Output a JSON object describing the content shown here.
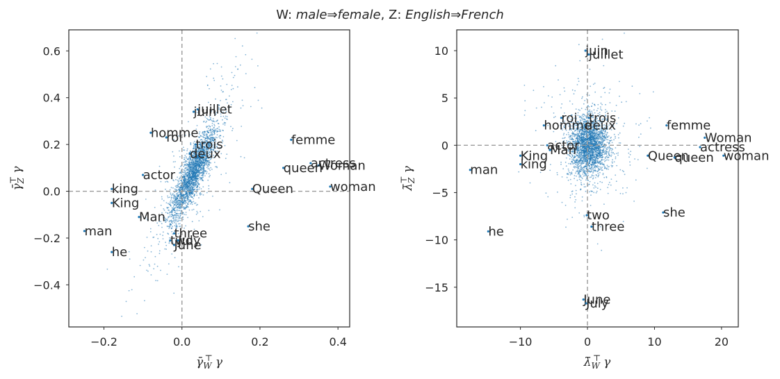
{
  "title": {
    "prefix_w": "W: ",
    "w_from": "male",
    "arrow": "⇒",
    "w_to": "female",
    "sep": ", Z: ",
    "z_from": "English",
    "z_to": "French"
  },
  "chart_data": [
    {
      "type": "scatter",
      "xlabel": "γ̄_W^⊤ γ",
      "ylabel": "γ̄_Z^⊤ γ",
      "xlim": [
        -0.29,
        0.43
      ],
      "ylim": [
        -0.58,
        0.69
      ],
      "xticks": [
        -0.2,
        0.0,
        0.2,
        0.4
      ],
      "xtick_labels": [
        "−0.2",
        "0.0",
        "0.2",
        "0.4"
      ],
      "yticks": [
        -0.4,
        -0.2,
        0.0,
        0.2,
        0.4,
        0.6
      ],
      "ytick_labels": [
        "−0.4",
        "−0.2",
        "0.0",
        "0.2",
        "0.4",
        "0.6"
      ],
      "reference_lines": {
        "x": 0.0,
        "y": 0.0
      },
      "point_color": "#1f77b4",
      "cloud": {
        "center": [
          0.03,
          0.08
        ],
        "spread": [
          0.03,
          0.1
        ],
        "correlation": 0.85,
        "count": 2600
      },
      "labels": [
        {
          "text": "juin",
          "x": 0.03,
          "y": 0.34
        },
        {
          "text": "juillet",
          "x": 0.04,
          "y": 0.35
        },
        {
          "text": "homme",
          "x": -0.08,
          "y": 0.25
        },
        {
          "text": "roi",
          "x": -0.04,
          "y": 0.23
        },
        {
          "text": "trois",
          "x": 0.035,
          "y": 0.2
        },
        {
          "text": "deux",
          "x": 0.02,
          "y": 0.16
        },
        {
          "text": "femme",
          "x": 0.28,
          "y": 0.22
        },
        {
          "text": "actress",
          "x": 0.33,
          "y": 0.12
        },
        {
          "text": "Woman",
          "x": 0.35,
          "y": 0.11
        },
        {
          "text": "queen",
          "x": 0.26,
          "y": 0.1
        },
        {
          "text": "actor",
          "x": -0.1,
          "y": 0.07
        },
        {
          "text": "king",
          "x": -0.18,
          "y": 0.01
        },
        {
          "text": "Queen",
          "x": 0.18,
          "y": 0.01
        },
        {
          "text": "woman",
          "x": 0.38,
          "y": 0.02
        },
        {
          "text": "King",
          "x": -0.18,
          "y": -0.05
        },
        {
          "text": "Man",
          "x": -0.11,
          "y": -0.11
        },
        {
          "text": "man",
          "x": -0.25,
          "y": -0.17
        },
        {
          "text": "she",
          "x": 0.17,
          "y": -0.15
        },
        {
          "text": "three",
          "x": -0.02,
          "y": -0.18
        },
        {
          "text": "two",
          "x": -0.03,
          "y": -0.21
        },
        {
          "text": "July",
          "x": -0.01,
          "y": -0.21
        },
        {
          "text": "June",
          "x": -0.02,
          "y": -0.23
        },
        {
          "text": "he",
          "x": -0.18,
          "y": -0.26
        }
      ]
    },
    {
      "type": "scatter",
      "xlabel": "λ̄_W^⊤ γ",
      "ylabel": "λ̄_Z^⊤ γ",
      "xlim": [
        -19.5,
        22.5
      ],
      "ylim": [
        -19.2,
        12.2
      ],
      "xticks": [
        -10,
        0,
        10,
        20
      ],
      "xtick_labels": [
        "−10",
        "0",
        "10",
        "20"
      ],
      "yticks": [
        -15,
        -10,
        -5,
        0,
        5,
        10
      ],
      "ytick_labels": [
        "−15",
        "−10",
        "−5",
        "0",
        "5",
        "10"
      ],
      "reference_lines": {
        "x": 0.0,
        "y": 0.0
      },
      "point_color": "#1f77b4",
      "cloud": {
        "center": [
          0.2,
          0.0
        ],
        "spread": [
          1.4,
          1.6
        ],
        "correlation": 0.0,
        "count": 2600
      },
      "labels": [
        {
          "text": "juin",
          "x": -0.3,
          "y": 10.0
        },
        {
          "text": "juillet",
          "x": 0.2,
          "y": 9.6
        },
        {
          "text": "roi",
          "x": -3.9,
          "y": 2.9
        },
        {
          "text": "trois",
          "x": 0.2,
          "y": 2.9
        },
        {
          "text": "homme",
          "x": -6.5,
          "y": 2.1
        },
        {
          "text": "deux",
          "x": -0.4,
          "y": 2.1
        },
        {
          "text": "femme",
          "x": 11.8,
          "y": 2.1
        },
        {
          "text": "Woman",
          "x": 17.5,
          "y": 0.8
        },
        {
          "text": "actor",
          "x": -6.0,
          "y": 0.0
        },
        {
          "text": "actress",
          "x": 16.8,
          "y": -0.2
        },
        {
          "text": "Man",
          "x": -5.6,
          "y": -0.5
        },
        {
          "text": "King",
          "x": -10.0,
          "y": -1.1
        },
        {
          "text": "Queen",
          "x": 9.0,
          "y": -1.1
        },
        {
          "text": "queen",
          "x": 13.0,
          "y": -1.3
        },
        {
          "text": "woman",
          "x": 20.3,
          "y": -1.1
        },
        {
          "text": "king",
          "x": -10.0,
          "y": -2.0
        },
        {
          "text": "man",
          "x": -17.5,
          "y": -2.6
        },
        {
          "text": "she",
          "x": 11.3,
          "y": -7.1
        },
        {
          "text": "two",
          "x": -0.1,
          "y": -7.4
        },
        {
          "text": "three",
          "x": 0.6,
          "y": -8.6
        },
        {
          "text": "he",
          "x": -14.8,
          "y": -9.1
        },
        {
          "text": "June",
          "x": -0.6,
          "y": -16.3
        },
        {
          "text": "July",
          "x": -0.2,
          "y": -16.7
        }
      ]
    }
  ]
}
